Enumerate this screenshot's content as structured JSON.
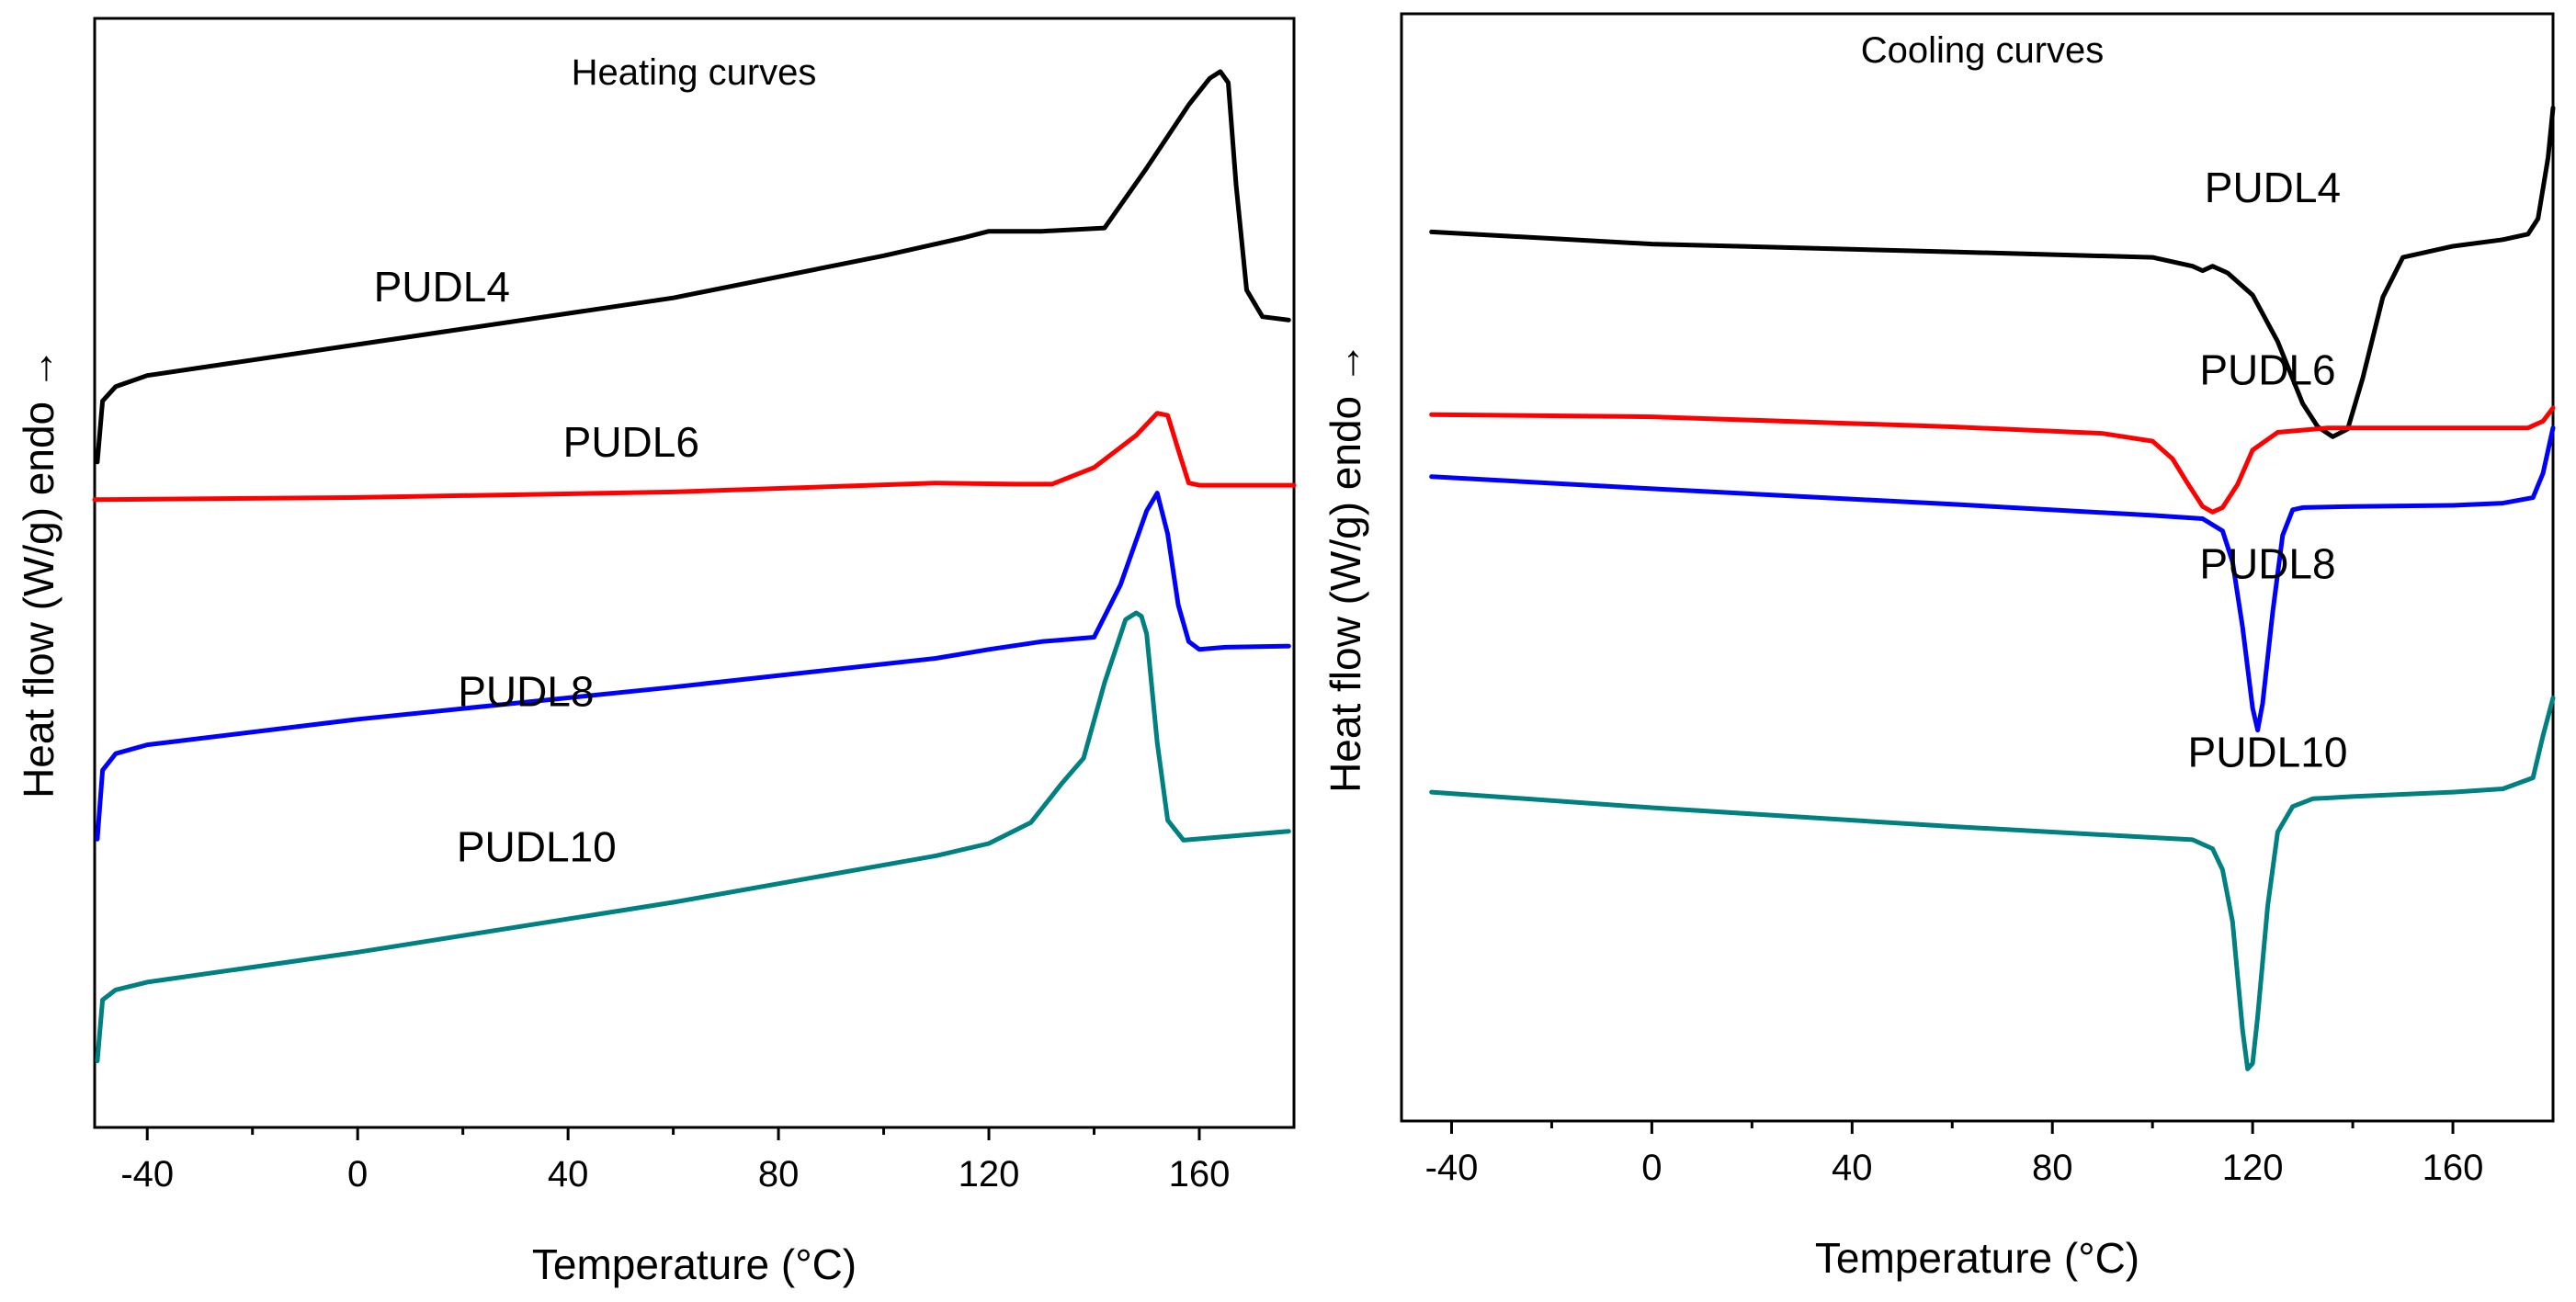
{
  "chart_data": [
    {
      "type": "line",
      "title": "Heating curves",
      "xlabel": "Temperature (°C)",
      "ylabel": "Heat flow (W/g) endo →",
      "xlim": [
        -50,
        178
      ],
      "ylim": [
        0,
        100
      ],
      "xticks": [
        -40,
        0,
        40,
        80,
        120,
        160
      ],
      "xtick_labels": [
        "-40",
        "0",
        "40",
        "80",
        "120",
        "160"
      ],
      "yticks": [],
      "series": [
        {
          "name": "PUDL4",
          "color": "#000000",
          "x": [
            -49.5,
            -48.5,
            -46,
            -40,
            0,
            60,
            100,
            115,
            120,
            130,
            142,
            150,
            158,
            162,
            164,
            165.5,
            167,
            169,
            172,
            177
          ],
          "y": [
            60,
            65.5,
            66.8,
            67.8,
            70.6,
            74.8,
            78.6,
            80.2,
            80.8,
            80.8,
            81.1,
            86.5,
            92.2,
            94.6,
            95.2,
            94.2,
            85,
            75.5,
            73.1,
            72.8
          ]
        },
        {
          "name": "PUDL6",
          "color": "#ff0000",
          "x": [
            -50,
            0,
            60,
            110,
            125,
            132,
            140,
            148,
            152,
            154,
            156,
            158,
            160,
            178
          ],
          "y": [
            56.6,
            56.8,
            57.3,
            58.1,
            58,
            58,
            59.5,
            62.4,
            64.4,
            64.2,
            61.1,
            58.1,
            57.9,
            57.9
          ]
        },
        {
          "name": "PUDL8",
          "color": "#0000ff",
          "x": [
            -49.5,
            -48.5,
            -46,
            -40,
            0,
            60,
            110,
            120,
            130,
            140,
            145,
            150,
            152,
            154,
            156,
            158,
            160,
            165,
            177
          ],
          "y": [
            26,
            32.2,
            33.7,
            34.5,
            36.8,
            39.7,
            42.3,
            43.1,
            43.8,
            44.2,
            48.9,
            55.6,
            57.2,
            53.5,
            47.1,
            43.8,
            43.1,
            43.3,
            43.4
          ]
        },
        {
          "name": "PUDL10",
          "color": "#008080",
          "x": [
            -49.5,
            -48.5,
            -46,
            -40,
            0,
            60,
            110,
            120,
            128,
            134,
            138,
            142,
            146,
            148,
            149,
            150,
            152,
            154,
            157,
            177
          ],
          "y": [
            6,
            11.5,
            12.4,
            13.1,
            15.8,
            20.3,
            24.5,
            25.6,
            27.5,
            31.1,
            33.3,
            40.1,
            45.8,
            46.4,
            46.1,
            44.5,
            34.7,
            27.7,
            25.9,
            26.7
          ]
        }
      ],
      "annotations": [
        {
          "text": "PUDL4",
          "x": 16,
          "y": 74.5
        },
        {
          "text": "PUDL6",
          "x": 52,
          "y": 60.5
        },
        {
          "text": "PUDL8",
          "x": 32,
          "y": 38
        },
        {
          "text": "PUDL10",
          "x": 34,
          "y": 24
        }
      ]
    },
    {
      "type": "line",
      "title": "Cooling curves",
      "xlabel": "Temperature (°C)",
      "ylabel": "Heat flow (W/g) endo →",
      "xlim": [
        -50,
        180
      ],
      "ylim": [
        0,
        100
      ],
      "xticks": [
        -40,
        0,
        40,
        80,
        120,
        160
      ],
      "xtick_labels": [
        "-40",
        "0",
        "40",
        "80",
        "120",
        "160"
      ],
      "yticks": [],
      "series": [
        {
          "name": "PUDL4",
          "color": "#000000",
          "x": [
            -44,
            0,
            60,
            100,
            108,
            110,
            112,
            115,
            120,
            125,
            130,
            133,
            136,
            139,
            142,
            146,
            150,
            160,
            170,
            175,
            177,
            179,
            180
          ],
          "y": [
            80.3,
            79.2,
            78.5,
            78,
            77.2,
            76.8,
            77.2,
            76.6,
            74.6,
            70.4,
            64.8,
            62.7,
            61.8,
            62.5,
            67.1,
            74.4,
            78,
            79,
            79.6,
            80.1,
            81.5,
            87,
            91.5
          ]
        },
        {
          "name": "PUDL6",
          "color": "#ff0000",
          "x": [
            -44,
            0,
            60,
            90,
            100,
            104,
            107,
            110,
            112,
            114,
            117,
            120,
            125,
            135,
            160,
            175,
            178,
            180
          ],
          "y": [
            63.8,
            63.6,
            62.7,
            62.1,
            61.4,
            59.8,
            57.6,
            55.5,
            55,
            55.4,
            57.5,
            60.6,
            62.2,
            62.6,
            62.6,
            62.6,
            63.2,
            64.4
          ]
        },
        {
          "name": "PUDL8",
          "color": "#0000ff",
          "x": [
            -44,
            0,
            60,
            100,
            110,
            114,
            116,
            118,
            120,
            121,
            122,
            124,
            126,
            128,
            130,
            140,
            160,
            170,
            176,
            178,
            180
          ],
          "y": [
            58.2,
            57.1,
            55.7,
            54.7,
            54.4,
            53.3,
            50.5,
            44.6,
            37.3,
            35.3,
            37.7,
            45.9,
            52.9,
            55.2,
            55.4,
            55.5,
            55.6,
            55.8,
            56.3,
            58.5,
            62.6
          ]
        },
        {
          "name": "PUDL10",
          "color": "#008080",
          "x": [
            -44,
            0,
            60,
            100,
            108,
            112,
            114,
            116,
            118,
            119,
            120,
            121,
            123,
            125,
            128,
            132,
            140,
            160,
            170,
            176,
            178,
            180
          ],
          "y": [
            29.7,
            28.3,
            26.6,
            25.6,
            25.4,
            24.6,
            22.7,
            18,
            8.2,
            4.7,
            5.2,
            9.4,
            19.4,
            26.1,
            28.4,
            29.1,
            29.3,
            29.7,
            30,
            31,
            34.8,
            38.2
          ]
        }
      ],
      "annotations": [
        {
          "text": "PUDL4",
          "x": 124,
          "y": 83
        },
        {
          "text": "PUDL6",
          "x": 123,
          "y": 66.5
        },
        {
          "text": "PUDL8",
          "x": 123,
          "y": 49
        },
        {
          "text": "PUDL10",
          "x": 123,
          "y": 32
        }
      ]
    }
  ]
}
